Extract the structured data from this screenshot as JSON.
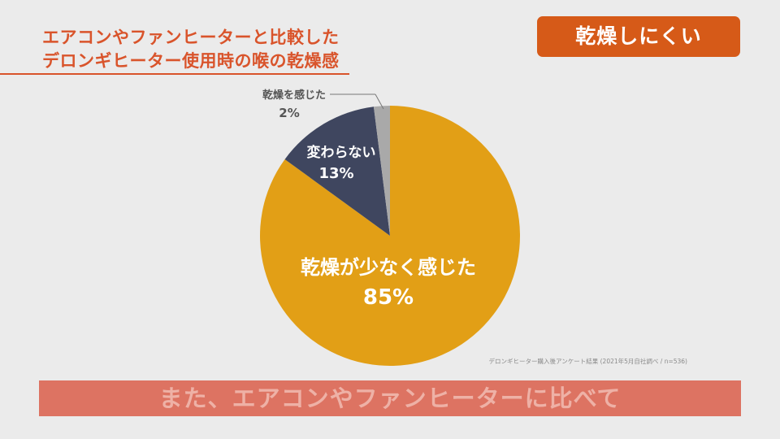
{
  "title": {
    "line1": "エアコンやファンヒーターと比較した",
    "line2": "デロンギヒーター使用時の喉の乾燥感"
  },
  "badge": {
    "label": "乾燥しにくい"
  },
  "source_note": "デロンギヒーター購入後アンケート結果 (2021年5月自社調べ / n=536)",
  "banner": {
    "text": "また、エアコンやファンヒーターに比べて"
  },
  "colors": {
    "accent": "#d9542b",
    "badge_bg": "#d65a18",
    "slice_major": "#e29f16",
    "slice_mid": "#3f465f",
    "slice_minor": "#a9a9a9",
    "banner_bg": "#dd7362"
  },
  "chart_data": {
    "type": "pie",
    "title": "エアコンやファンヒーターと比較したデロンギヒーター使用時の喉の乾燥感",
    "start": "12 o'clock, clockwise",
    "slices": [
      {
        "label": "乾燥が少なく感じた",
        "value": 85,
        "display": "85%",
        "color": "#e29f16"
      },
      {
        "label": "変わらない",
        "value": 13,
        "display": "13%",
        "color": "#3f465f"
      },
      {
        "label": "乾燥を感じた",
        "value": 2,
        "display": "2%",
        "color": "#a9a9a9"
      }
    ]
  }
}
